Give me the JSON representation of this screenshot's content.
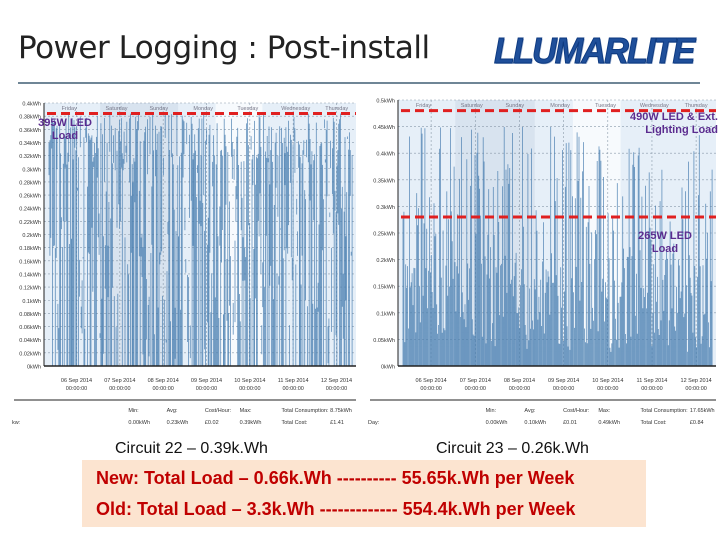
{
  "slide": {
    "title": "Power Logging : Post-install",
    "logo_text": "LLUMARLITE"
  },
  "left_chart": {
    "y_ticks": [
      "0.4kWh",
      "0.38kWh",
      "0.36kWh",
      "0.34kWh",
      "0.32kWh",
      "0.3kWh",
      "0.28kWh",
      "0.26kWh",
      "0.24kWh",
      "0.22kWh",
      "0.2kWh",
      "0.18kWh",
      "0.16kWh",
      "0.14kWh",
      "0.12kWh",
      "0.1kWh",
      "0.08kWh",
      "0.06kWh",
      "0.04kWh",
      "0.02kWh",
      "0kWh"
    ],
    "days": [
      "Friday",
      "Saturday",
      "Sunday",
      "Monday",
      "Tuesday",
      "Wednesday",
      "Thursday"
    ],
    "x_ticks": [
      "06 Sep 2014",
      "07 Sep 2014",
      "08 Sep 2014",
      "09 Sep 2014",
      "10 Sep 2014",
      "11 Sep 2014",
      "12 Sep 2014"
    ],
    "x_time": "00:00:00",
    "annotation": "395W LED Load",
    "stats_headers": [
      "Min:",
      "Avg:",
      "Cost/Hour:",
      "Max:",
      "Total Consumption:"
    ],
    "stats_row_label": "kw:",
    "stats_values": [
      "0.00kWh",
      "0.23kWh",
      "£0.02",
      "0.39kWh",
      "Total Cost:",
      "£1.41"
    ],
    "total_consumption": "8.75kWh"
  },
  "right_chart": {
    "y_ticks": [
      "0.5kWh",
      "0.45kWh",
      "0.4kWh",
      "0.35kWh",
      "0.3kWh",
      "0.25kWh",
      "0.2kWh",
      "0.15kWh",
      "0.1kWh",
      "0.05kWh",
      "0kWh"
    ],
    "days": [
      "Friday",
      "Saturday",
      "Sunday",
      "Monday",
      "Tuesday",
      "Wednesday",
      "Thursday"
    ],
    "x_ticks": [
      "06 Sep 2014",
      "07 Sep 2014",
      "08 Sep 2014",
      "09 Sep 2014",
      "10 Sep 2014",
      "11 Sep 2014",
      "12 Sep 2014"
    ],
    "x_time": "00:00:00",
    "annotation_top": "490W LED & Ext. Lighting Load",
    "annotation_mid": "265W LED Load",
    "stats_headers": [
      "Min:",
      "Avg:",
      "Cost/Hour:",
      "Max:",
      "Total Consumption:"
    ],
    "stats_row_label": "Day:",
    "stats_values": [
      "0.00kWh",
      "0.10kWh",
      "£0.01",
      "0.49kWh",
      "Total Cost:",
      "£0.84"
    ],
    "total_consumption": "17.65kWh"
  },
  "captions": {
    "left": "Circuit 22 – 0.39k.Wh",
    "right": "Circuit 23 – 0.26k.Wh"
  },
  "summary": {
    "new_line": "New: Total Load  –  0.66k.Wh ---------- 55.65k.Wh per Week",
    "old_line": "Old: Total Load  –  3.3k.Wh ------------- 554.4k.Wh per Week"
  },
  "colors": {
    "reference_line": "#e02020",
    "annotation": "#5b2c8f",
    "summary_text": "#c00000",
    "summary_bg": "#fce4d0",
    "series": "#4a7fb0"
  }
}
